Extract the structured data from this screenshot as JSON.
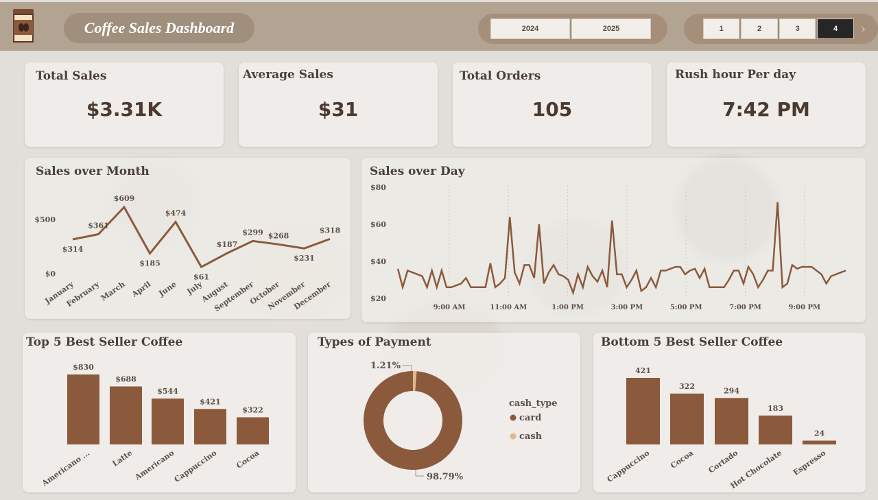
{
  "header": {
    "title": "Coffee Sales Dashboard",
    "years": [
      "2024",
      "2025"
    ],
    "pages": [
      "1",
      "2",
      "3",
      "4"
    ],
    "selected_page": "4",
    "next_icon": "chevron-right-icon",
    "logo_icon": "coffee-cup-icon"
  },
  "kpis": [
    {
      "label": "Total Sales",
      "value": "$3.31K"
    },
    {
      "label": "Average Sales",
      "value": "$31"
    },
    {
      "label": "Total Orders",
      "value": "105"
    },
    {
      "label": "Rush hour Per day",
      "value": "7:42 PM"
    }
  ],
  "colors": {
    "accent": "#8b5a3c",
    "cash": "#e0b98e",
    "header": "#b3a392"
  },
  "chart_data": [
    {
      "type": "line",
      "title": "Sales over Month",
      "categories": [
        "January",
        "February",
        "March",
        "April",
        "June",
        "July",
        "August",
        "September",
        "October",
        "November",
        "December"
      ],
      "values": [
        314,
        361,
        609,
        185,
        474,
        61,
        187,
        299,
        268,
        231,
        318
      ],
      "labels": [
        "$314",
        "$361",
        "$609",
        "$185",
        "$474",
        "$61",
        "$187",
        "$299",
        "$268",
        "$231",
        "$318"
      ],
      "yticks": [
        "$0",
        "$500"
      ],
      "ylim": [
        0,
        609
      ]
    },
    {
      "type": "line",
      "title": "Sales over Day",
      "xticks": [
        "9:00 AM",
        "11:00 AM",
        "1:00 PM",
        "3:00 PM",
        "5:00 PM",
        "7:00 PM",
        "9:00 PM"
      ],
      "yticks": [
        "$20",
        "$40",
        "$60",
        "$80"
      ],
      "ylim": [
        20,
        80
      ],
      "values": [
        36,
        26,
        35,
        34,
        33,
        32,
        26,
        35,
        26,
        35,
        26,
        26,
        27,
        28,
        31,
        26,
        26,
        26,
        26,
        39,
        26,
        28,
        31,
        64,
        34,
        28,
        38,
        38,
        31,
        60,
        28,
        34,
        38,
        33,
        32,
        30,
        23,
        33,
        26,
        37,
        32,
        29,
        35,
        26,
        62,
        33,
        33,
        26,
        30,
        35,
        24,
        26,
        31,
        26,
        35,
        35,
        36,
        37,
        37,
        33,
        35,
        36,
        31,
        36,
        26,
        26,
        26,
        26,
        30,
        35,
        35,
        28,
        37,
        33,
        26,
        30,
        35,
        35,
        72,
        26,
        28,
        38,
        36,
        37,
        37,
        37,
        35,
        33,
        28,
        32,
        33,
        34,
        35
      ]
    },
    {
      "type": "bar",
      "title": "Top 5 Best Seller Coffee",
      "categories": [
        "Americano ...",
        "Latte",
        "Americano",
        "Cappuccino",
        "Cocoa"
      ],
      "values": [
        830,
        688,
        544,
        421,
        322
      ],
      "labels": [
        "$830",
        "$688",
        "$544",
        "$421",
        "$322"
      ]
    },
    {
      "type": "pie",
      "title": "Types of Payment",
      "legend_title": "cash_type",
      "categories": [
        "card",
        "cash"
      ],
      "values": [
        98.79,
        1.21
      ],
      "labels": [
        "98.79%",
        "1.21%"
      ]
    },
    {
      "type": "bar",
      "title": "Bottom 5 Best Seller Coffee",
      "categories": [
        "Cappuccino",
        "Cocoa",
        "Cortado",
        "Hot Chocolate",
        "Espresso"
      ],
      "values": [
        421,
        322,
        294,
        183,
        24
      ],
      "labels": [
        "421",
        "322",
        "294",
        "183",
        "24"
      ]
    }
  ]
}
